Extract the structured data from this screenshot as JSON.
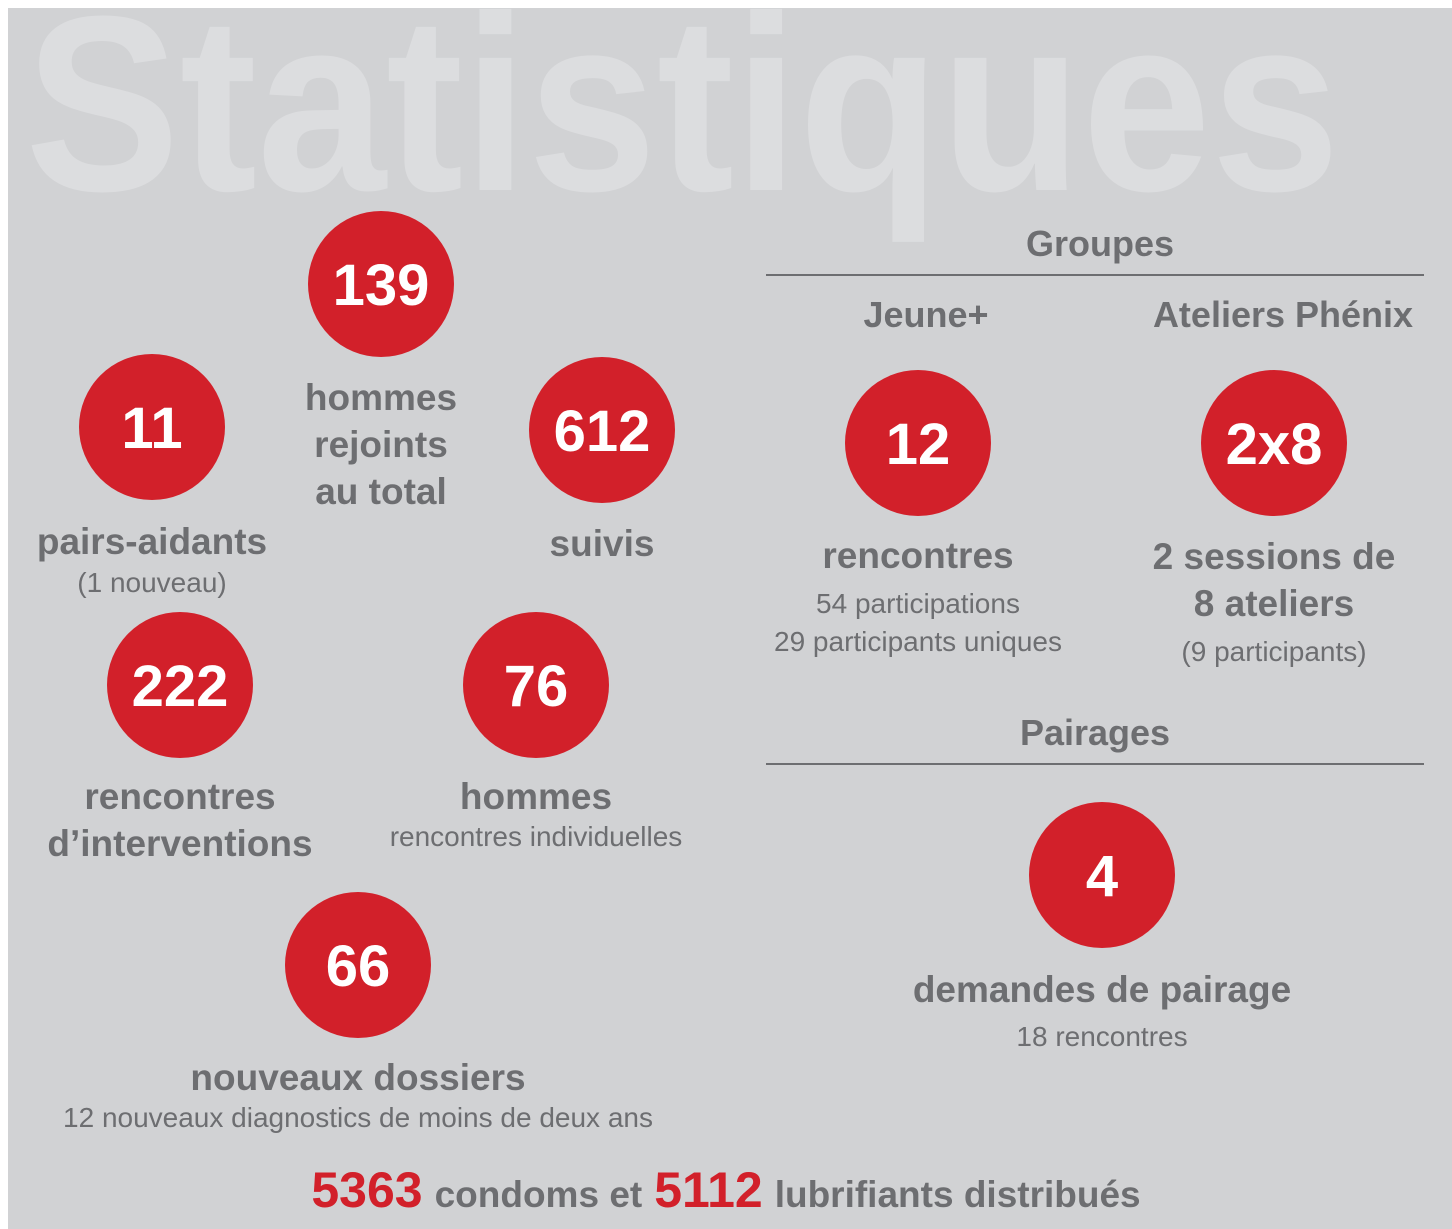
{
  "header": {
    "title": "Statistiques"
  },
  "stats": [
    {
      "value": 139,
      "lines": [
        "hommes",
        "rejoints",
        "au total"
      ]
    },
    {
      "value": 11,
      "lines": [
        "pairs-aidants"
      ],
      "details": [
        "(1 nouveau)"
      ]
    },
    {
      "value": 612,
      "lines": [
        "suivis"
      ]
    },
    {
      "value": 222,
      "lines": [
        "rencontres",
        "d’interventions"
      ]
    },
    {
      "value": 76,
      "lines": [
        "hommes"
      ],
      "details": [
        "rencontres individuelles"
      ]
    },
    {
      "value": 66,
      "lines": [
        "nouveaux dossiers"
      ],
      "details": [
        "12 nouveaux diagnostics de moins de deux ans"
      ]
    }
  ],
  "groupes": {
    "title": "Groupes",
    "items": [
      {
        "name": "Jeune+",
        "value": 12,
        "lines": [
          "rencontres"
        ],
        "details": [
          "54 participations",
          "29 participants uniques"
        ]
      },
      {
        "name": "Ateliers Phénix",
        "value": "2x8",
        "lines": [
          "2 sessions de",
          "8 ateliers"
        ],
        "details": [
          "(9 participants)"
        ]
      }
    ]
  },
  "pairages": {
    "title": "Pairages",
    "value": 4,
    "lines": [
      "demandes de pairage"
    ],
    "details": [
      "18 rencontres"
    ]
  },
  "footer": {
    "condoms": 5363,
    "condoms_text": "condoms et",
    "lubrifiants": 5112,
    "lubrifiants_text": "lubrifiants distribués"
  }
}
